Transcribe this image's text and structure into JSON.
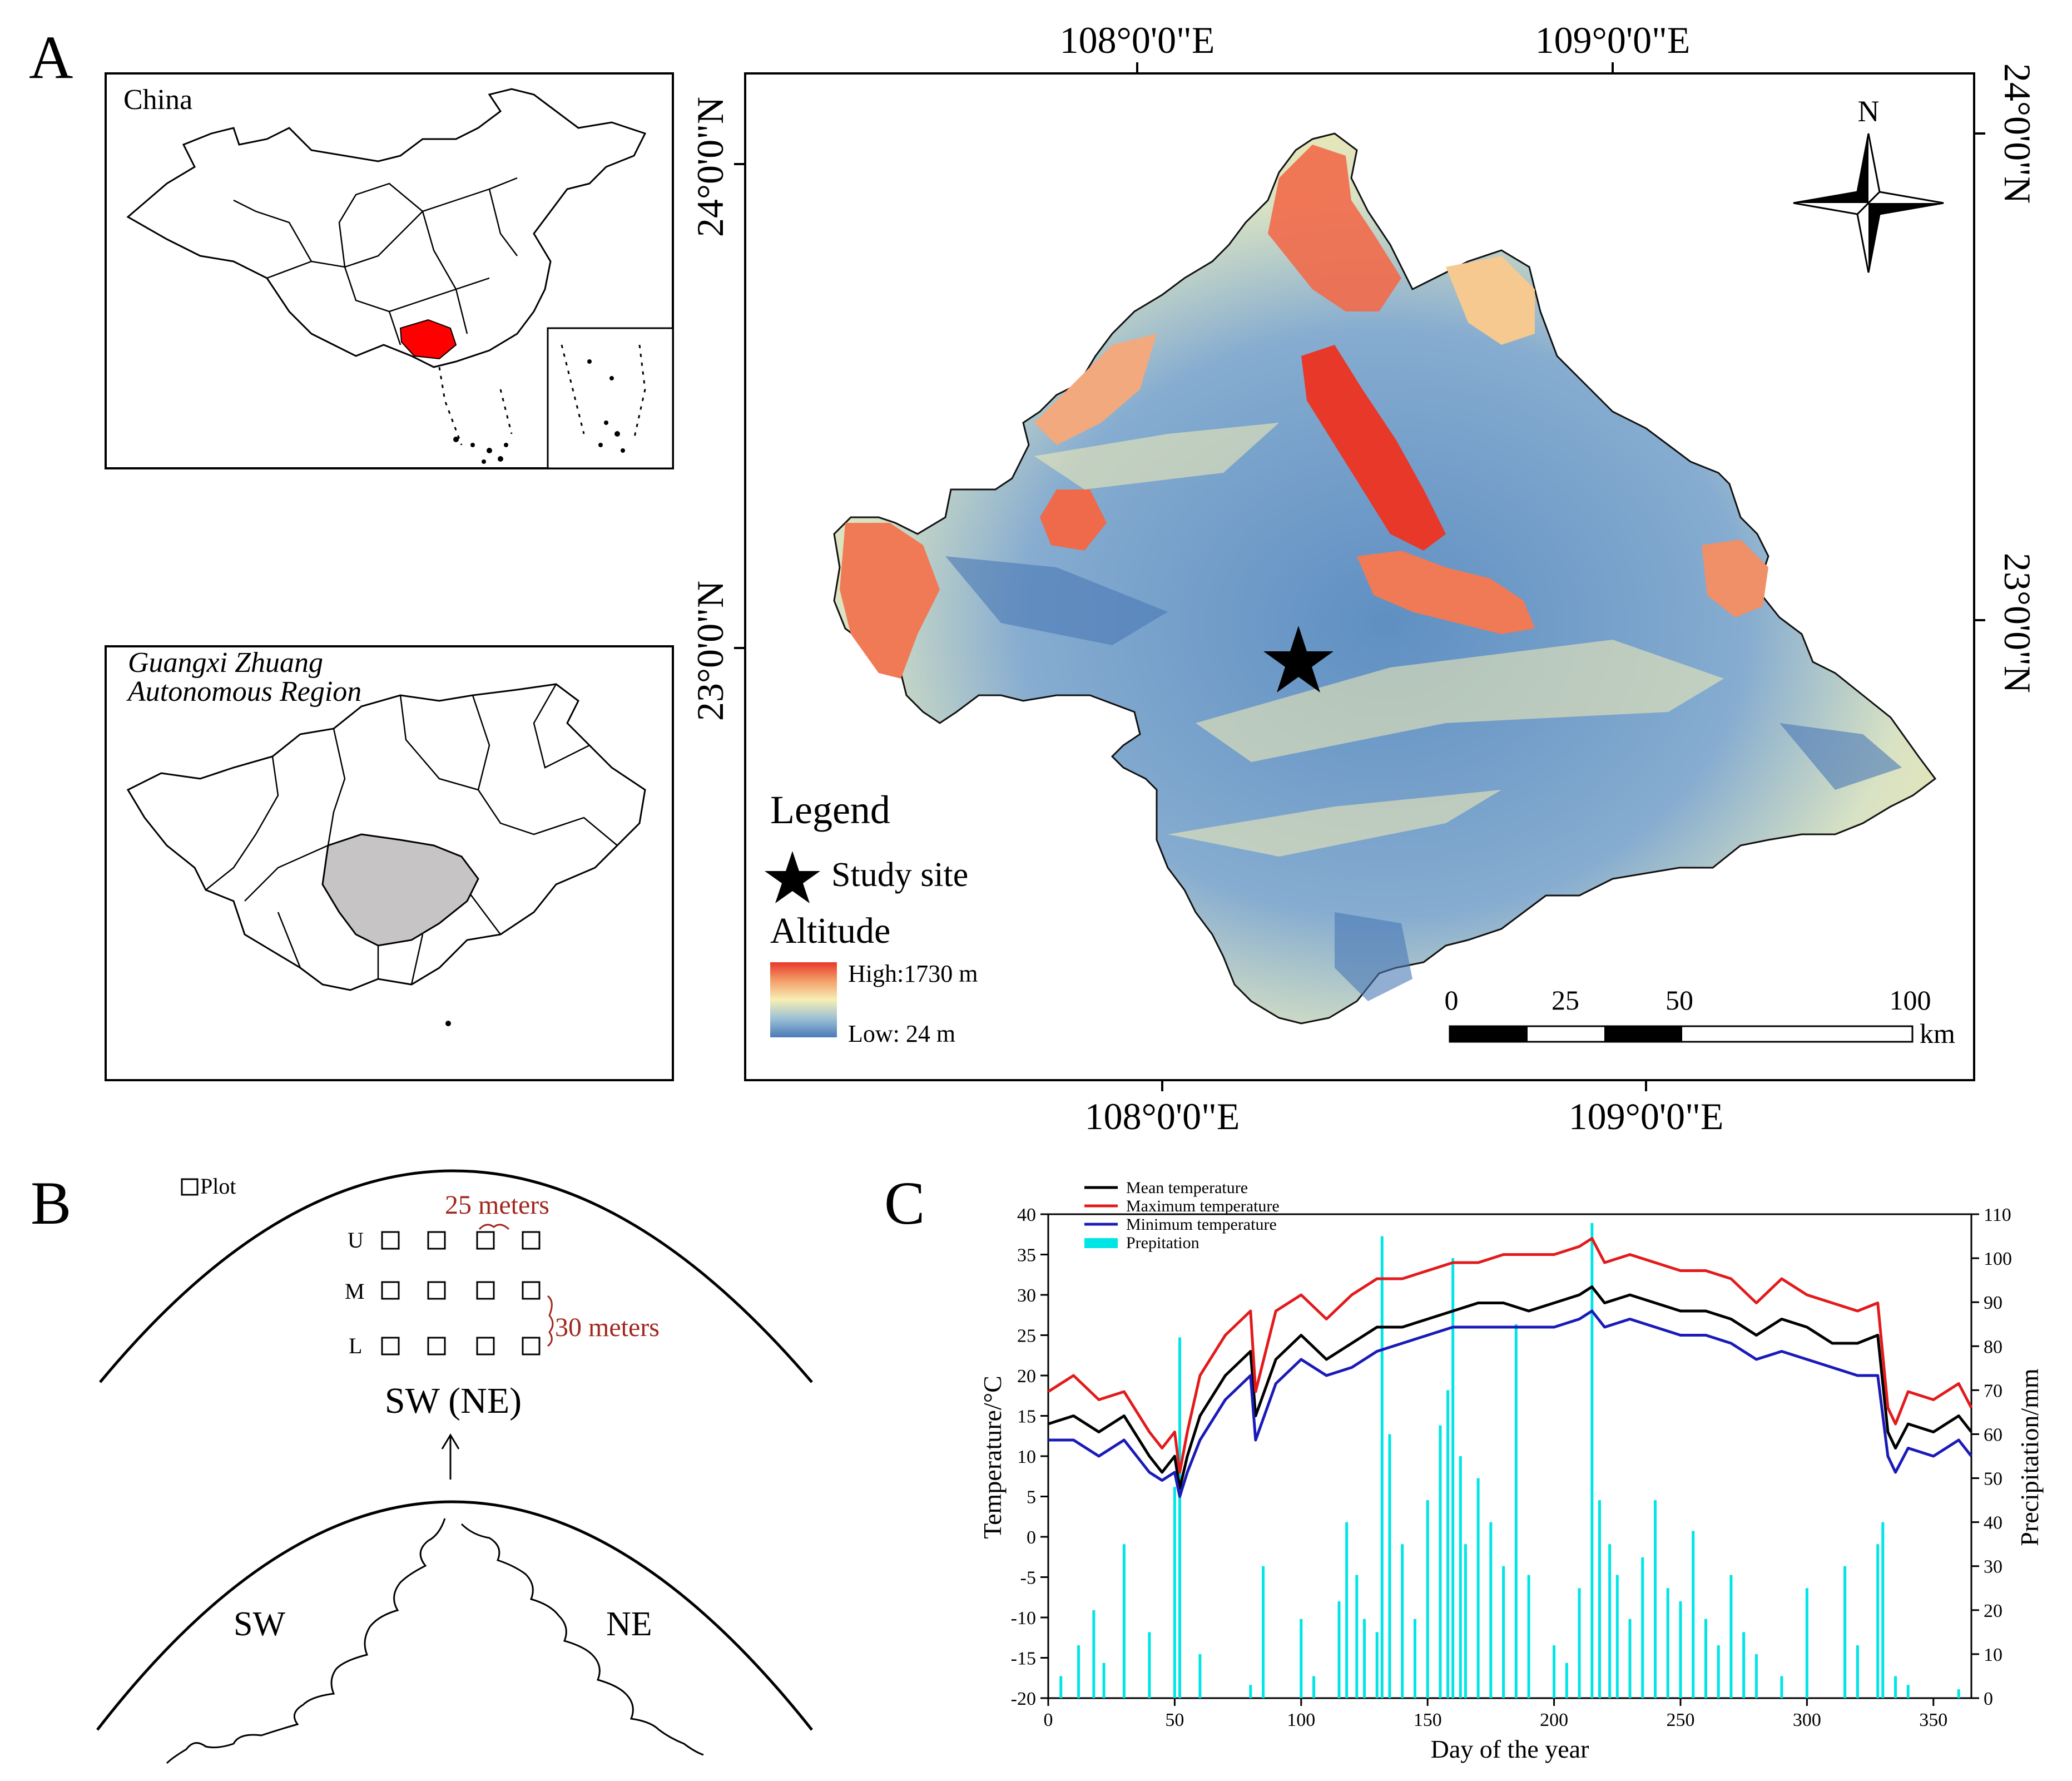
{
  "panels": {
    "a": "A",
    "b": "B",
    "c": "C"
  },
  "china_inset": {
    "title": "China"
  },
  "guangxi_inset": {
    "title_line1": "Guangxi Zhuang",
    "title_line2": "Autonomous Region"
  },
  "main_map": {
    "top_lon_labels": [
      "108°0'0\"E",
      "109°0'0\"E"
    ],
    "bottom_lon_labels": [
      "108°0'0\"E",
      "109°0'0\"E"
    ],
    "left_lat_labels": [
      "24°0'0\"N",
      "23°0'0\"N"
    ],
    "right_lat_labels": [
      "24°0'0\"N",
      "23°0'0\"N"
    ],
    "north_label": "N",
    "legend": {
      "title": "Legend",
      "site_label": "Study site",
      "altitude_title": "Altitude",
      "high_label": "High:1730 m",
      "low_label": "Low: 24 m",
      "colors": {
        "high": "#e8382a",
        "mid": "#f6efb4",
        "low": "#4a7bb8"
      }
    },
    "scale_bar": {
      "ticks": [
        "0",
        "25",
        "50",
        "100"
      ],
      "unit": "km"
    }
  },
  "panel_b": {
    "plot_legend": "Plot",
    "spacing_h": "25 meters",
    "spacing_v": "30 meters",
    "rows": [
      "U",
      "M",
      "L"
    ],
    "aspect_label": "SW (NE)",
    "slope_left": "SW",
    "slope_right": "NE",
    "colors": {
      "annotation": "#a0281e"
    }
  },
  "chart_data": {
    "type": "line",
    "title": "",
    "xlabel": "Day of the year",
    "ylabel": "Temperature/°C",
    "y2label": "Precipitation/mm",
    "xlim": [
      0,
      365
    ],
    "ylim": [
      -20,
      40
    ],
    "y2lim": [
      0,
      110
    ],
    "x_ticks": [
      0,
      50,
      100,
      150,
      200,
      250,
      300,
      350
    ],
    "y_ticks": [
      -20,
      -15,
      -10,
      -5,
      0,
      5,
      10,
      15,
      20,
      25,
      30,
      35,
      40
    ],
    "y2_ticks": [
      0,
      10,
      20,
      30,
      40,
      50,
      60,
      70,
      80,
      90,
      100,
      110
    ],
    "x_tick_labels": [
      "0",
      "50",
      "100",
      "150",
      "200",
      "250",
      "300",
      "350"
    ],
    "y_tick_labels": [
      "-20",
      "-15",
      "-10",
      "-5",
      "0",
      "5",
      "10",
      "15",
      "20",
      "25",
      "30",
      "35",
      "40"
    ],
    "y2_tick_labels": [
      "0",
      "10",
      "20",
      "30",
      "40",
      "50",
      "60",
      "70",
      "80",
      "90",
      "100",
      "110"
    ],
    "legend": [
      "Mean temperature",
      "Maximum temperature",
      "Minimum temperature",
      "Prepitation"
    ],
    "legend_position": "top-left",
    "key_x": [
      0,
      10,
      20,
      30,
      40,
      45,
      50,
      52,
      55,
      60,
      70,
      80,
      82,
      90,
      100,
      110,
      120,
      130,
      140,
      150,
      160,
      170,
      180,
      190,
      200,
      210,
      215,
      220,
      230,
      240,
      250,
      260,
      270,
      280,
      290,
      300,
      310,
      320,
      328,
      332,
      335,
      340,
      350,
      360,
      365
    ],
    "series": [
      {
        "name": "Mean temperature",
        "color": "#000000",
        "values": [
          14,
          15,
          13,
          15,
          10,
          8,
          10,
          6,
          10,
          15,
          20,
          23,
          15,
          22,
          25,
          22,
          24,
          26,
          26,
          27,
          28,
          29,
          29,
          28,
          29,
          30,
          31,
          29,
          30,
          29,
          28,
          28,
          27,
          25,
          27,
          26,
          24,
          24,
          25,
          13,
          11,
          14,
          13,
          15,
          13
        ]
      },
      {
        "name": "Maximum temperature",
        "color": "#e31a1c",
        "values": [
          18,
          20,
          17,
          18,
          13,
          11,
          13,
          8,
          13,
          20,
          25,
          28,
          18,
          28,
          30,
          27,
          30,
          32,
          32,
          33,
          34,
          34,
          35,
          35,
          35,
          36,
          37,
          34,
          35,
          34,
          33,
          33,
          32,
          29,
          32,
          30,
          29,
          28,
          29,
          16,
          14,
          18,
          17,
          19,
          16
        ]
      },
      {
        "name": "Minimum temperature",
        "color": "#1a1ab8",
        "values": [
          12,
          12,
          10,
          12,
          8,
          7,
          8,
          5,
          8,
          12,
          17,
          20,
          12,
          19,
          22,
          20,
          21,
          23,
          24,
          25,
          26,
          26,
          26,
          26,
          26,
          27,
          28,
          26,
          27,
          26,
          25,
          25,
          24,
          22,
          23,
          22,
          21,
          20,
          20,
          10,
          8,
          11,
          10,
          12,
          10
        ]
      }
    ],
    "precipitation": {
      "name": "Prepitation",
      "color": "#00e5e5",
      "days": [
        5,
        12,
        18,
        22,
        30,
        40,
        50,
        52,
        60,
        80,
        85,
        100,
        105,
        115,
        118,
        122,
        125,
        130,
        132,
        135,
        140,
        145,
        150,
        155,
        158,
        160,
        163,
        165,
        170,
        175,
        180,
        185,
        190,
        200,
        205,
        210,
        215,
        218,
        222,
        225,
        230,
        235,
        240,
        245,
        250,
        255,
        260,
        265,
        270,
        275,
        280,
        290,
        300,
        315,
        320,
        328,
        330,
        335,
        340,
        360
      ],
      "values": [
        5,
        12,
        20,
        8,
        35,
        15,
        48,
        82,
        10,
        3,
        30,
        18,
        5,
        22,
        40,
        28,
        18,
        15,
        105,
        60,
        35,
        18,
        45,
        62,
        70,
        100,
        55,
        35,
        50,
        40,
        30,
        85,
        28,
        12,
        8,
        25,
        108,
        45,
        35,
        28,
        18,
        32,
        45,
        25,
        22,
        38,
        18,
        12,
        28,
        15,
        10,
        5,
        25,
        30,
        12,
        35,
        40,
        5,
        3,
        2
      ]
    }
  }
}
